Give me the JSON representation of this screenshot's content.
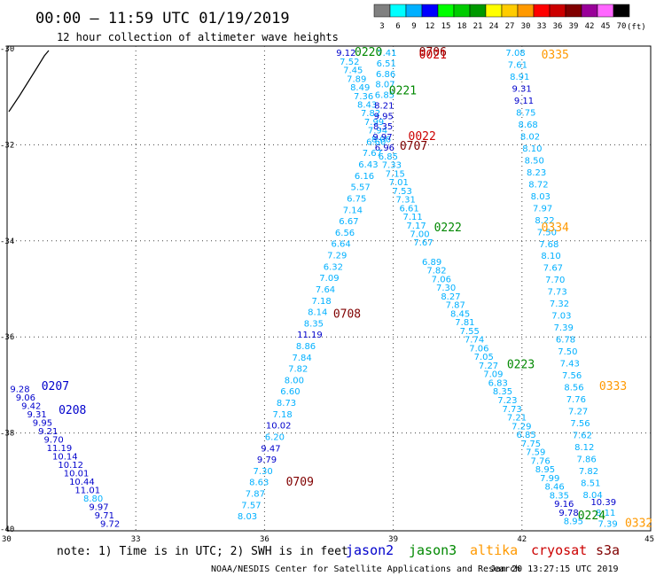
{
  "header": {
    "title": "00:00 – 11:59 UTC 01/19/2019",
    "subtitle": "12 hour collection of altimeter wave heights"
  },
  "legend": {
    "unit": "(ft)",
    "bins": [
      {
        "label": "3",
        "color": "#808080"
      },
      {
        "label": "6",
        "color": "#00ffff"
      },
      {
        "label": "9",
        "color": "#00b0ff"
      },
      {
        "label": "12",
        "color": "#0000ff"
      },
      {
        "label": "15",
        "color": "#00ff00"
      },
      {
        "label": "18",
        "color": "#00cc00"
      },
      {
        "label": "21",
        "color": "#009900"
      },
      {
        "label": "24",
        "color": "#ffff00"
      },
      {
        "label": "27",
        "color": "#ffcc00"
      },
      {
        "label": "30",
        "color": "#ff9900"
      },
      {
        "label": "33",
        "color": "#ff0000"
      },
      {
        "label": "36",
        "color": "#cc0000"
      },
      {
        "label": "39",
        "color": "#800000"
      },
      {
        "label": "42",
        "color": "#990099"
      },
      {
        "label": "45",
        "color": "#ff66ff"
      },
      {
        "label": "70",
        "color": "#000000"
      }
    ]
  },
  "axes": {
    "y_ticks": [
      "-30",
      "-32",
      "-34",
      "-36",
      "-38",
      "-40"
    ],
    "x_ticks": [
      "30",
      "33",
      "36",
      "39",
      "42",
      "45"
    ]
  },
  "colors": {
    "jason2": "#0000cc",
    "jason3": "#008800",
    "altika": "#ff9900",
    "cryosat": "#cc0000",
    "s3a": "#800000",
    "low": "#00b0ff"
  },
  "footer": {
    "note": "note: 1) Time is in UTC; 2) SWH is in feet",
    "credit": "NOAA/NESDIS Center for Satellite Applications and Research",
    "timestamp": "Jan 20 13:27:15 UTC 2019"
  },
  "satellites": [
    {
      "label": "jason2",
      "color": "#0000cc"
    },
    {
      "label": "jason3",
      "color": "#008800"
    },
    {
      "label": "altika",
      "color": "#ff9900"
    },
    {
      "label": "cryosat",
      "color": "#cc0000"
    },
    {
      "label": "s3a",
      "color": "#800000"
    }
  ],
  "time_labels": [
    {
      "text": "0220",
      "lon": 38.1,
      "lat": -30.15,
      "color": "#008800"
    },
    {
      "text": "0706",
      "lon": 39.6,
      "lat": -30.15,
      "color": "#800000"
    },
    {
      "text": "0021",
      "lon": 39.6,
      "lat": -30.2,
      "color": "#cc0000"
    },
    {
      "text": "0335",
      "lon": 42.45,
      "lat": -30.2,
      "color": "#ff9900"
    },
    {
      "text": "0221",
      "lon": 38.9,
      "lat": -30.95,
      "color": "#008800"
    },
    {
      "text": "0022",
      "lon": 39.35,
      "lat": -31.9,
      "color": "#cc0000"
    },
    {
      "text": "0707",
      "lon": 39.15,
      "lat": -32.1,
      "color": "#800000"
    },
    {
      "text": "0222",
      "lon": 39.95,
      "lat": -33.8,
      "color": "#008800"
    },
    {
      "text": "0334",
      "lon": 42.45,
      "lat": -33.8,
      "color": "#ff9900"
    },
    {
      "text": "0708",
      "lon": 37.6,
      "lat": -35.6,
      "color": "#800000"
    },
    {
      "text": "0207",
      "lon": 30.8,
      "lat": -37.1,
      "color": "#0000cc"
    },
    {
      "text": "0223",
      "lon": 41.65,
      "lat": -36.65,
      "color": "#008800"
    },
    {
      "text": "0333",
      "lon": 43.8,
      "lat": -37.1,
      "color": "#ff9900"
    },
    {
      "text": "0208",
      "lon": 31.2,
      "lat": -37.6,
      "color": "#0000cc"
    },
    {
      "text": "0709",
      "lon": 36.5,
      "lat": -39.1,
      "color": "#800000"
    },
    {
      "text": "0224",
      "lon": 43.3,
      "lat": -39.8,
      "color": "#008800"
    },
    {
      "text": "0332",
      "lon": 44.4,
      "lat": -39.95,
      "color": "#ff9900"
    }
  ],
  "tracks": [
    {
      "id": "pass-0220-0221",
      "color": "#00b0ff",
      "start": {
        "lon": 37.9,
        "lat": -30.15
      },
      "end": {
        "lon": 39.7,
        "lat": -34.1
      },
      "values": [
        "9.12",
        "7.52",
        "7.45",
        "7.89",
        "8.49",
        "7.36",
        "8.43",
        "7.82",
        "7.99",
        "7.94",
        "8.06",
        "6.96",
        "6.85",
        "7.33",
        "7.15",
        "7.01",
        "7.53",
        "7.31",
        "6.61",
        "7.11",
        "7.17",
        "7.00",
        "7.67"
      ],
      "highlight": {
        "0": "#0000cc",
        "11": "#0000cc"
      }
    },
    {
      "id": "pass-0021-0022",
      "color": "#00b0ff",
      "start": {
        "lon": 38.85,
        "lat": -30.15
      },
      "end": {
        "lon": 38.75,
        "lat": -31.9
      },
      "values": [
        "7.41",
        "6.51",
        "6.86",
        "8.07",
        "6.85",
        "8.21",
        "9.95",
        "8.35",
        "9.97"
      ],
      "highlight": {
        "5": "#0000cc",
        "6": "#0000cc",
        "7": "#0000cc",
        "8": "#0000cc"
      }
    },
    {
      "id": "pass-0706-0709",
      "color": "#00b0ff",
      "start": {
        "lon": 38.6,
        "lat": -32.0
      },
      "end": {
        "lon": 35.6,
        "lat": -39.8
      },
      "values": [
        "6.60",
        "7.67",
        "6.43",
        "6.16",
        "5.57",
        "6.75",
        "7.14",
        "6.67",
        "6.56",
        "6.64",
        "7.29",
        "6.32",
        "7.09",
        "7.64",
        "7.18",
        "8.14",
        "8.35",
        "11.19",
        "8.86",
        "7.84",
        "7.82",
        "8.00",
        "6.60",
        "8.73",
        "7.18",
        "10.02",
        "6.20",
        "9.47",
        "9.79",
        "7.30",
        "8.63",
        "7.87",
        "7.57",
        "8.03"
      ],
      "highlight": {
        "17": "#0000cc",
        "25": "#0000cc",
        "27": "#0000cc",
        "28": "#0000cc"
      }
    },
    {
      "id": "pass-0222-0224",
      "color": "#00b0ff",
      "start": {
        "lon": 39.9,
        "lat": -34.5
      },
      "end": {
        "lon": 43.2,
        "lat": -39.9
      },
      "values": [
        "6.89",
        "7.82",
        "7.06",
        "7.30",
        "8.27",
        "7.87",
        "8.45",
        "7.81",
        "7.55",
        "7.74",
        "7.06",
        "7.05",
        "7.27",
        "7.09",
        "6.83",
        "8.35",
        "7.23",
        "7.73",
        "7.21",
        "7.29",
        "6.85",
        "7.75",
        "7.59",
        "7.76",
        "8.95",
        "7.99",
        "8.46",
        "8.35",
        "9.16",
        "9.78",
        "8.95"
      ],
      "highlight": {
        "28": "#0000cc",
        "29": "#0000cc"
      }
    },
    {
      "id": "pass-0224-tail",
      "color": "#00b0ff",
      "start": {
        "lon": 43.9,
        "lat": -39.5
      },
      "end": {
        "lon": 44.0,
        "lat": -39.95
      },
      "values": [
        "10.39",
        "8.11",
        "7.39"
      ],
      "highlight": {
        "0": "#0000cc"
      }
    },
    {
      "id": "pass-0335-0332",
      "color": "#00b0ff",
      "start": {
        "lon": 41.85,
        "lat": -30.15
      },
      "end": {
        "lon": 43.65,
        "lat": -39.35
      },
      "values": [
        "7.08",
        "7.61",
        "8.91",
        "9.31",
        "9.11",
        "8.75",
        "8.68",
        "8.02",
        "8.10",
        "8.50",
        "8.23",
        "8.72",
        "8.03",
        "7.97",
        "8.22",
        "7.50",
        "7.68",
        "8.10",
        "7.67",
        "7.70",
        "7.73",
        "7.32",
        "7.03",
        "7.39",
        "6.78",
        "7.50",
        "7.43",
        "7.56",
        "8.56",
        "7.76",
        "7.27",
        "7.56",
        "7.62",
        "8.12",
        "7.86",
        "7.82",
        "8.51",
        "8.04"
      ],
      "highlight": {
        "3": "#0000cc",
        "4": "#0000cc"
      }
    },
    {
      "id": "pass-0207-0208",
      "color": "#0000cc",
      "start": {
        "lon": 30.3,
        "lat": -37.15
      },
      "end": {
        "lon": 32.4,
        "lat": -39.95
      },
      "values": [
        "9.28",
        "9.06",
        "9.42",
        "9.31",
        "9.95",
        "9.21",
        "9.70",
        "11.19",
        "10.14",
        "10.12",
        "10.01",
        "10.44",
        "11.01",
        "8.80",
        "9.97",
        "9.71",
        "9.72"
      ],
      "highlight": {
        "13": "#00b0ff"
      }
    }
  ]
}
